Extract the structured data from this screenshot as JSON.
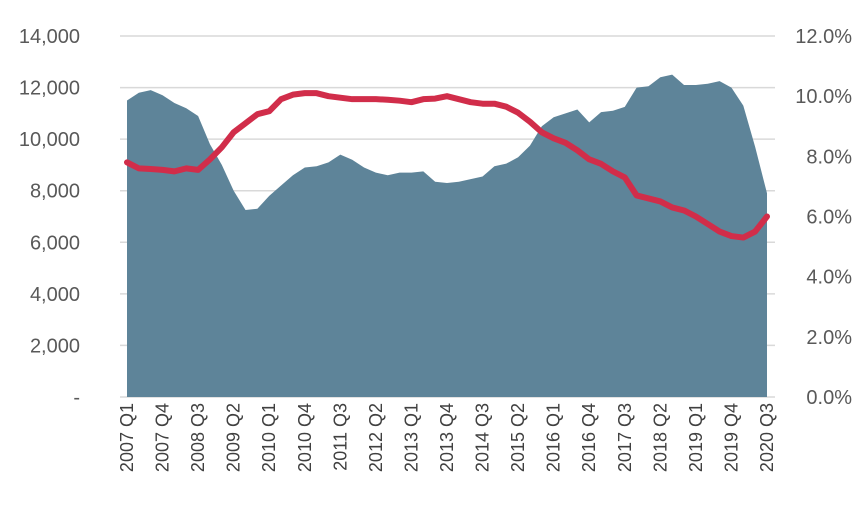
{
  "chart_data": {
    "type": "area",
    "colors": {
      "area": "#5E8499",
      "line": "#D12D4A",
      "grid": "#D9D9D9"
    },
    "y_left": {
      "ticks": [
        "-",
        "2,000",
        "4,000",
        "6,000",
        "8,000",
        "10,000",
        "12,000",
        "14,000"
      ],
      "ylim": [
        0,
        14000
      ]
    },
    "y_right": {
      "ticks": [
        "0.0%",
        "2.0%",
        "4.0%",
        "6.0%",
        "8.0%",
        "10.0%",
        "12.0%"
      ],
      "ylim": [
        0,
        12
      ]
    },
    "x_tick_labels": [
      "2007 Q1",
      "2007 Q4",
      "2008 Q3",
      "2009 Q2",
      "2010 Q1",
      "2010 Q4",
      "2011 Q3",
      "2012 Q2",
      "2013 Q1",
      "2013 Q4",
      "2014 Q3",
      "2015 Q2",
      "2016 Q1",
      "2016 Q4",
      "2017 Q3",
      "2018 Q2",
      "2019 Q1",
      "2019 Q4",
      "2020 Q3"
    ],
    "categories": [
      "2007 Q1",
      "2007 Q2",
      "2007 Q3",
      "2007 Q4",
      "2008 Q1",
      "2008 Q2",
      "2008 Q3",
      "2008 Q4",
      "2009 Q1",
      "2009 Q2",
      "2009 Q3",
      "2009 Q4",
      "2010 Q1",
      "2010 Q2",
      "2010 Q3",
      "2010 Q4",
      "2011 Q1",
      "2011 Q2",
      "2011 Q3",
      "2011 Q4",
      "2012 Q1",
      "2012 Q2",
      "2012 Q3",
      "2012 Q4",
      "2013 Q1",
      "2013 Q2",
      "2013 Q3",
      "2013 Q4",
      "2014 Q1",
      "2014 Q2",
      "2014 Q3",
      "2014 Q4",
      "2015 Q1",
      "2015 Q2",
      "2015 Q3",
      "2015 Q4",
      "2016 Q1",
      "2016 Q2",
      "2016 Q3",
      "2016 Q4",
      "2017 Q1",
      "2017 Q2",
      "2017 Q3",
      "2017 Q4",
      "2018 Q1",
      "2018 Q2",
      "2018 Q3",
      "2018 Q4",
      "2019 Q1",
      "2019 Q2",
      "2019 Q3",
      "2019 Q4",
      "2020 Q1",
      "2020 Q2",
      "2020 Q3"
    ],
    "series": [
      {
        "axis": "left",
        "type": "area",
        "values": [
          11500,
          11800,
          11900,
          11700,
          11400,
          11200,
          10900,
          9800,
          9000,
          8000,
          7250,
          7300,
          7800,
          8200,
          8600,
          8900,
          8950,
          9100,
          9400,
          9200,
          8900,
          8700,
          8600,
          8700,
          8700,
          8750,
          8350,
          8300,
          8350,
          8450,
          8550,
          8950,
          9050,
          9300,
          9750,
          10500,
          10850,
          11000,
          11150,
          10650,
          11050,
          11100,
          11250,
          12000,
          12050,
          12400,
          12500,
          12100,
          12100,
          12150,
          12250,
          12000,
          11300,
          9700,
          7900
        ]
      },
      {
        "axis": "right",
        "type": "line",
        "values": [
          7.8,
          7.6,
          7.58,
          7.55,
          7.5,
          7.6,
          7.55,
          7.9,
          8.3,
          8.8,
          9.1,
          9.4,
          9.5,
          9.9,
          10.05,
          10.1,
          10.1,
          10.0,
          9.95,
          9.9,
          9.9,
          9.9,
          9.88,
          9.85,
          9.8,
          9.9,
          9.92,
          10.0,
          9.9,
          9.8,
          9.75,
          9.75,
          9.65,
          9.45,
          9.15,
          8.8,
          8.6,
          8.45,
          8.2,
          7.9,
          7.75,
          7.5,
          7.3,
          6.7,
          6.6,
          6.5,
          6.3,
          6.2,
          6.0,
          5.75,
          5.5,
          5.35,
          5.3,
          5.5,
          6.0
        ]
      }
    ]
  }
}
